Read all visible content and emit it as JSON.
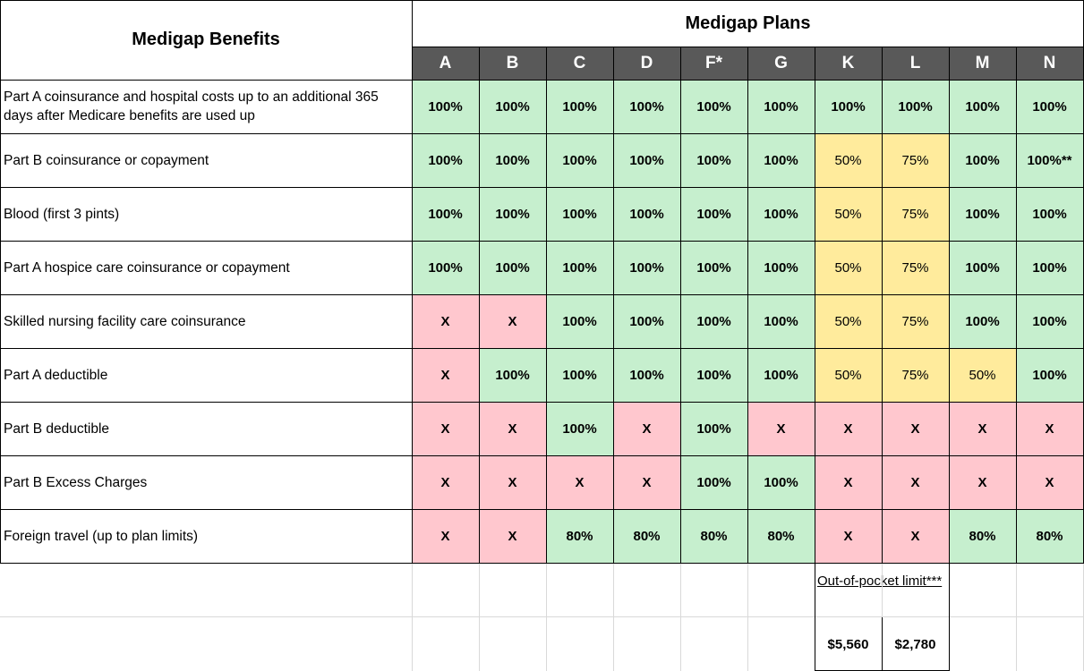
{
  "header": {
    "benefits_title": "Medigap Benefits",
    "plans_title": "Medigap Plans"
  },
  "plans": [
    "A",
    "B",
    "C",
    "D",
    "F*",
    "G",
    "K",
    "L",
    "M",
    "N"
  ],
  "benefits": [
    {
      "label": "Part A coinsurance and hospital costs up to an additional 365 days after Medicare benefits are used up",
      "values": [
        "100%",
        "100%",
        "100%",
        "100%",
        "100%",
        "100%",
        "100%",
        "100%",
        "100%",
        "100%"
      ]
    },
    {
      "label": "Part B coinsurance or copayment",
      "values": [
        "100%",
        "100%",
        "100%",
        "100%",
        "100%",
        "100%",
        "50%",
        "75%",
        "100%",
        "100%**"
      ]
    },
    {
      "label": "Blood (first 3 pints)",
      "values": [
        "100%",
        "100%",
        "100%",
        "100%",
        "100%",
        "100%",
        "50%",
        "75%",
        "100%",
        "100%"
      ]
    },
    {
      "label": "Part A hospice care coinsurance or copayment",
      "values": [
        "100%",
        "100%",
        "100%",
        "100%",
        "100%",
        "100%",
        "50%",
        "75%",
        "100%",
        "100%"
      ]
    },
    {
      "label": "Skilled nursing facility care coinsurance",
      "values": [
        "X",
        "X",
        "100%",
        "100%",
        "100%",
        "100%",
        "50%",
        "75%",
        "100%",
        "100%"
      ]
    },
    {
      "label": "Part A deductible",
      "values": [
        "X",
        "100%",
        "100%",
        "100%",
        "100%",
        "100%",
        "50%",
        "75%",
        "50%",
        "100%"
      ]
    },
    {
      "label": "Part B deductible",
      "values": [
        "X",
        "X",
        "100%",
        "X",
        "100%",
        "X",
        "X",
        "X",
        "X",
        "X"
      ]
    },
    {
      "label": "Part B Excess Charges",
      "values": [
        "X",
        "X",
        "X",
        "X",
        "100%",
        "100%",
        "X",
        "X",
        "X",
        "X"
      ]
    },
    {
      "label": "Foreign travel (up to plan limits)",
      "values": [
        "X",
        "X",
        "80%",
        "80%",
        "80%",
        "80%",
        "X",
        "X",
        "80%",
        "80%"
      ]
    }
  ],
  "colors": {
    "full_coverage": "#c6efce",
    "partial_coverage": "#ffeb9c",
    "no_coverage": "#ffc7ce",
    "plan_header": "#595959"
  },
  "out_of_pocket": {
    "label": "Out-of-pocket limit***",
    "K": "$5,560",
    "L": "$2,780"
  }
}
